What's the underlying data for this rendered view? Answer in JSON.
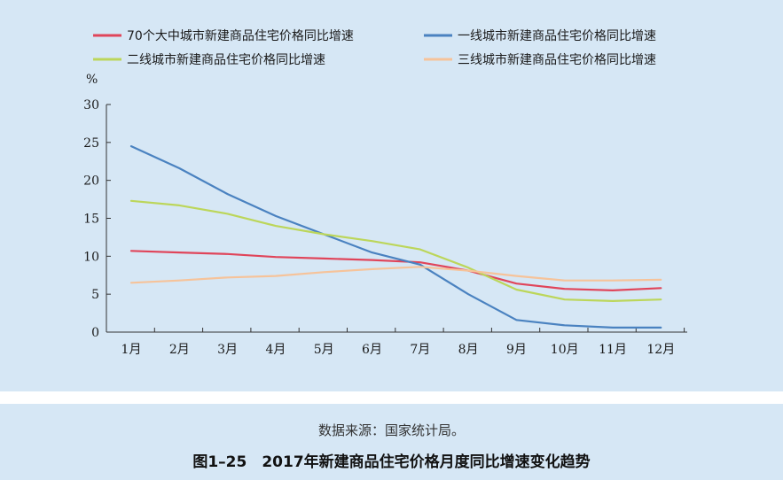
{
  "source_text": "数据来源：国家统计局。",
  "figure_title": "图1–25　2017年新建商品住宅价格月度同比增速变化趋势",
  "chart_data": {
    "type": "line",
    "ylabel": "%",
    "ylim": [
      0,
      30
    ],
    "yticks": [
      0,
      5,
      10,
      15,
      20,
      25,
      30
    ],
    "categories": [
      "1月",
      "2月",
      "3月",
      "4月",
      "5月",
      "6月",
      "7月",
      "8月",
      "9月",
      "10月",
      "11月",
      "12月"
    ],
    "legend_position": "top",
    "series": [
      {
        "name": "70个大中城市新建商品住宅价格同比增速",
        "color": "#e0455a",
        "values": [
          10.7,
          10.5,
          10.3,
          9.9,
          9.7,
          9.5,
          9.2,
          8.1,
          6.4,
          5.7,
          5.5,
          5.8
        ]
      },
      {
        "name": "一线城市新建商品住宅价格同比增速",
        "color": "#4a82c0",
        "values": [
          24.5,
          21.6,
          18.2,
          15.3,
          12.9,
          10.5,
          8.9,
          5.0,
          1.6,
          0.9,
          0.6,
          0.6
        ]
      },
      {
        "name": "二线城市新建商品住宅价格同比增速",
        "color": "#bcd65a",
        "values": [
          17.3,
          16.7,
          15.6,
          14.0,
          12.9,
          12.0,
          10.9,
          8.5,
          5.6,
          4.3,
          4.1,
          4.3
        ]
      },
      {
        "name": "三线城市新建商品住宅价格同比增速",
        "color": "#f6c39a",
        "values": [
          6.5,
          6.8,
          7.2,
          7.4,
          7.9,
          8.3,
          8.6,
          8.1,
          7.4,
          6.8,
          6.8,
          6.9
        ]
      }
    ]
  }
}
